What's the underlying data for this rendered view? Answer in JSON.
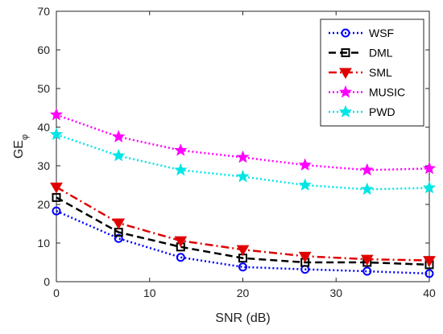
{
  "chart_data": {
    "type": "line",
    "xlabel": "SNR (dB)",
    "ylabel_main": "GE",
    "ylabel_sub": "φ",
    "xlim": [
      0,
      40
    ],
    "ylim": [
      0,
      70
    ],
    "xticks": [
      0,
      10,
      20,
      30,
      40
    ],
    "yticks": [
      0,
      10,
      20,
      30,
      40,
      50,
      60,
      70
    ],
    "grid": false,
    "legend_position": "top-right",
    "x": [
      0,
      6.67,
      13.33,
      20,
      26.67,
      33.33,
      40
    ],
    "series": [
      {
        "name": "WSF",
        "color": "#0000ff",
        "line": "dotted",
        "marker": "circle",
        "values": [
          18.3,
          11.2,
          6.3,
          3.8,
          3.2,
          2.7,
          2.1
        ]
      },
      {
        "name": "DML",
        "color": "#000000",
        "line": "dashed",
        "marker": "square",
        "values": [
          21.8,
          12.8,
          9.0,
          6.1,
          5.0,
          5.0,
          4.4
        ]
      },
      {
        "name": "SML",
        "color": "#e00000",
        "line": "dashdot",
        "marker": "triangle-down",
        "values": [
          24.5,
          15.2,
          10.6,
          8.3,
          6.6,
          5.8,
          5.5
        ]
      },
      {
        "name": "MUSIC",
        "color": "#ff00ff",
        "line": "dotted",
        "marker": "star",
        "values": [
          43.2,
          37.5,
          34.0,
          32.2,
          30.2,
          28.9,
          29.3
        ]
      },
      {
        "name": "PWD",
        "color": "#00e5e5",
        "line": "dotted",
        "marker": "star",
        "values": [
          38.1,
          32.6,
          28.9,
          27.2,
          25.0,
          23.9,
          24.3
        ]
      }
    ]
  }
}
